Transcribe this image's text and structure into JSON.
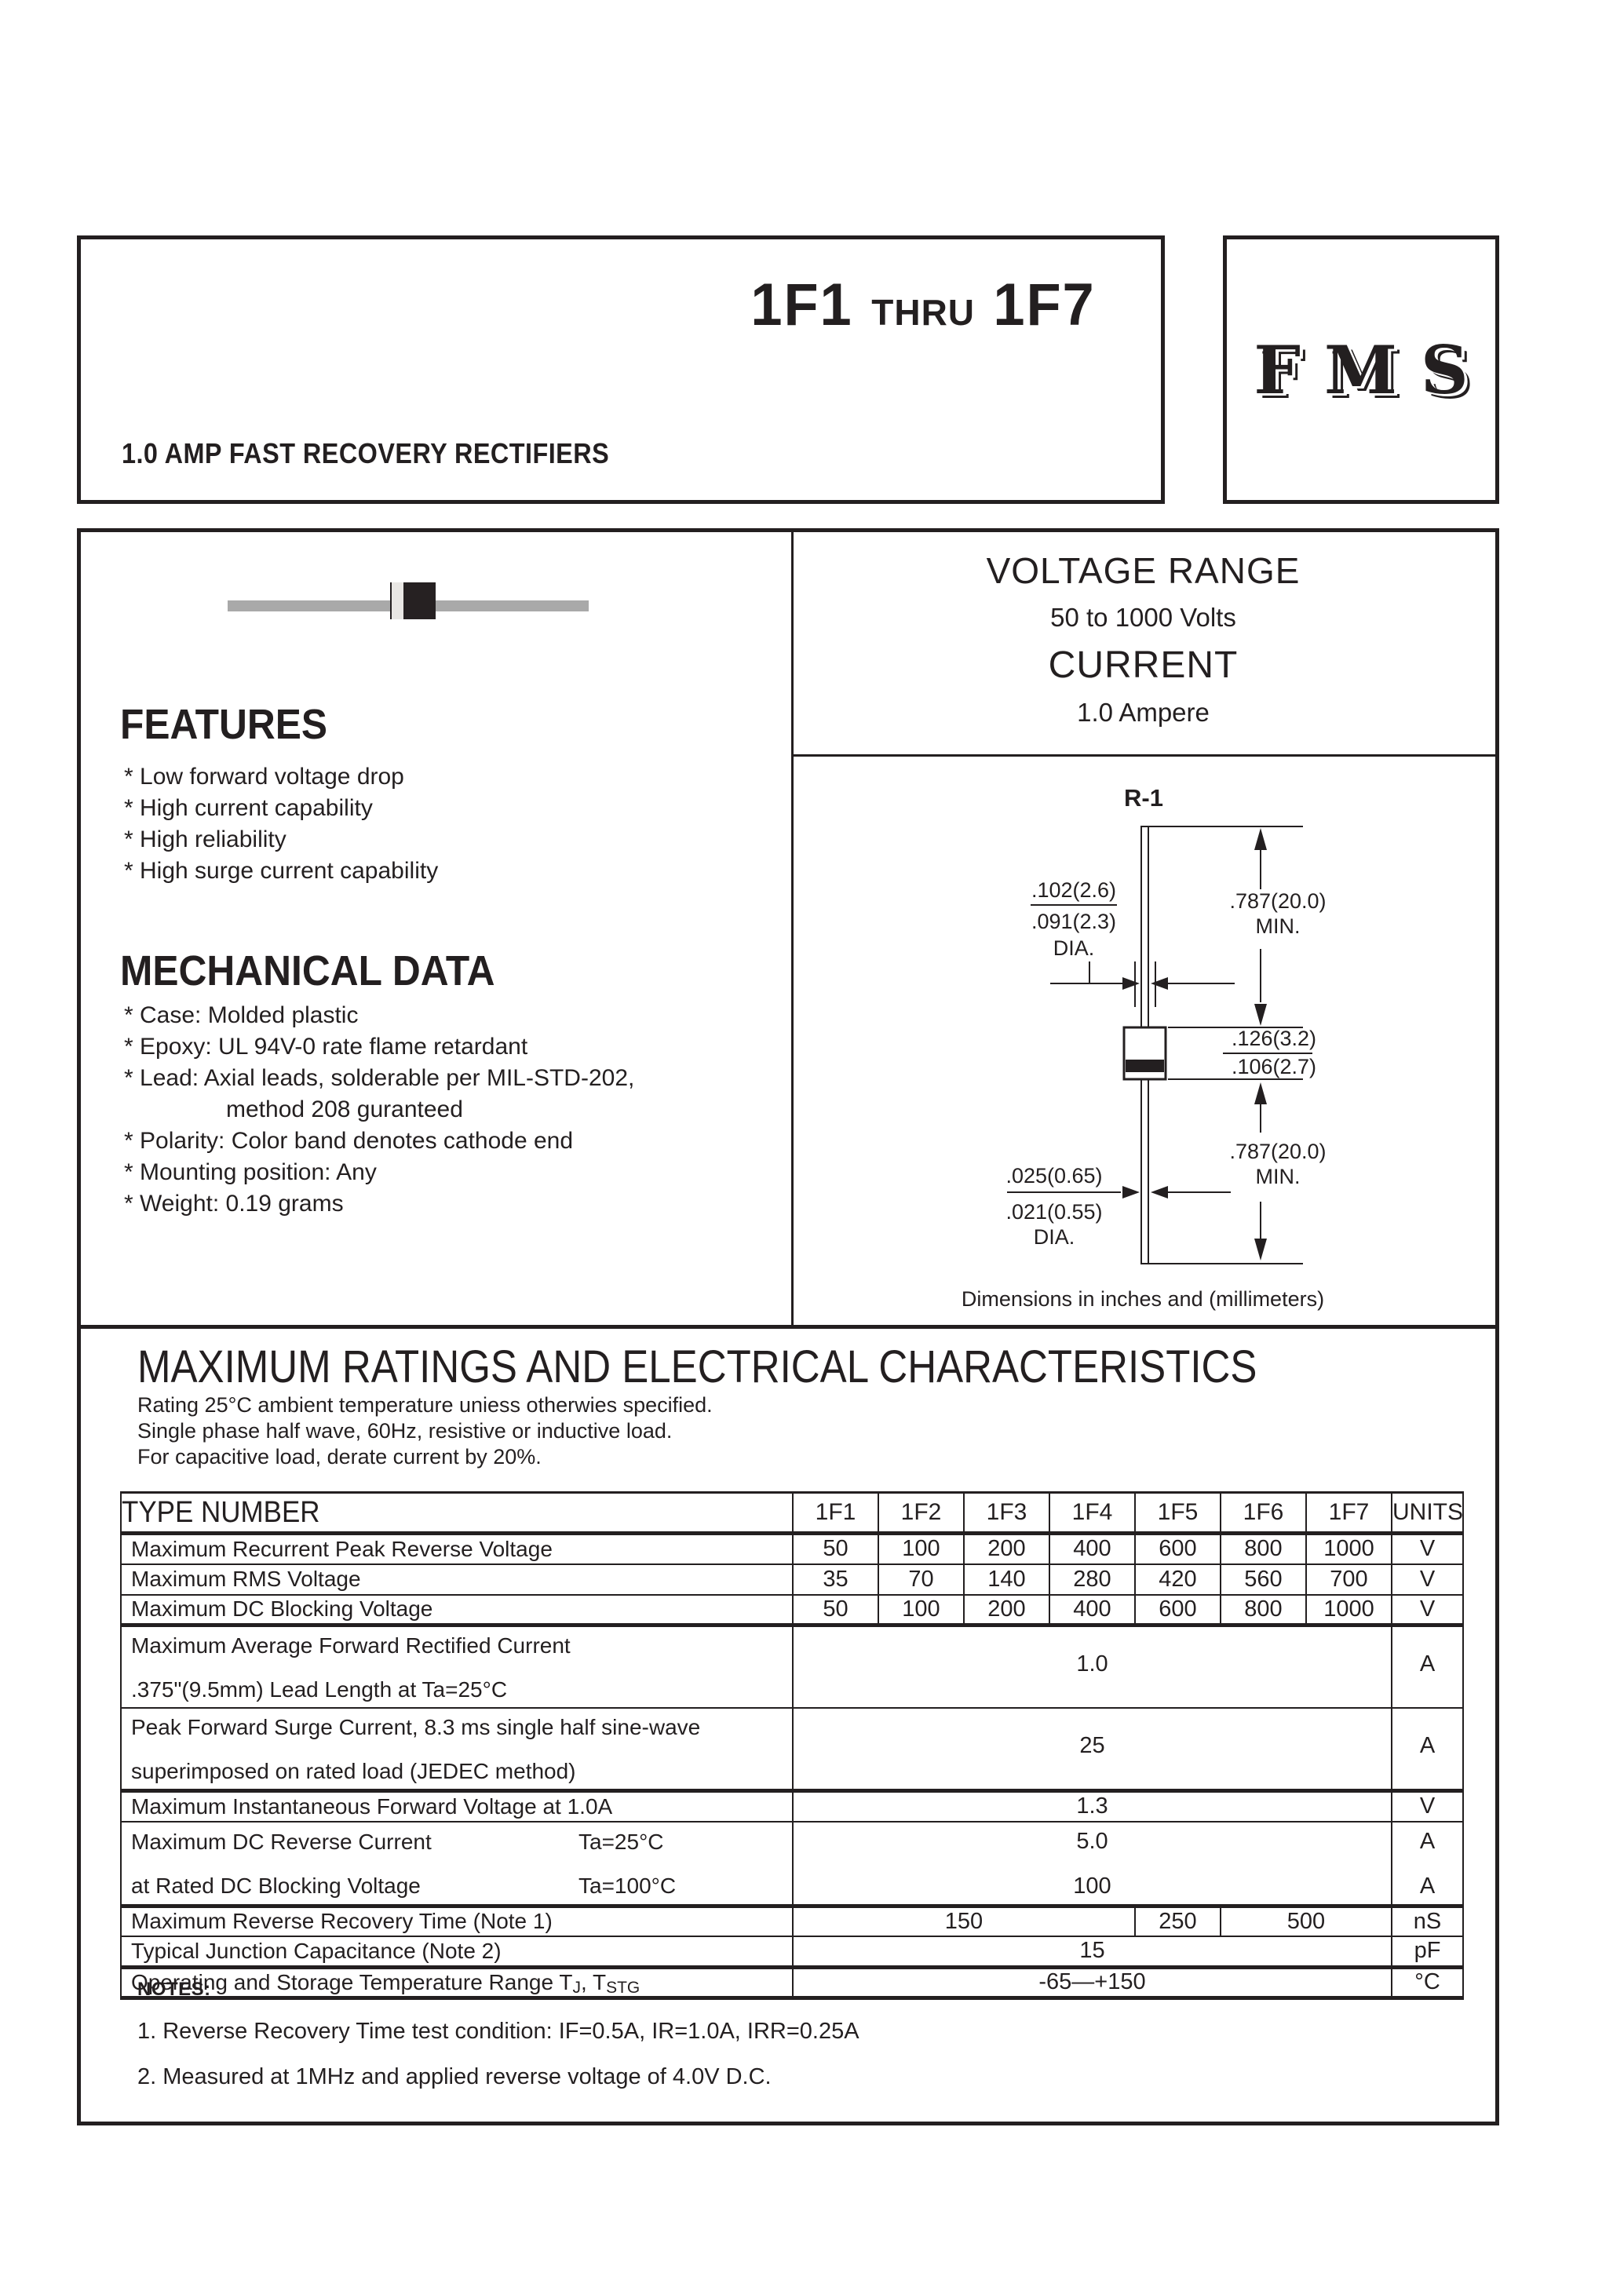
{
  "header": {
    "title_first": "1F1",
    "title_thru": "THRU",
    "title_last": "1F7",
    "subtitle": "1.0 AMP FAST RECOVERY RECTIFIERS",
    "brand": "FMS"
  },
  "summary": {
    "voltage_range_label": "VOLTAGE RANGE",
    "voltage_range_value": "50 to 1000 Volts",
    "current_label": "CURRENT",
    "current_value": "1.0 Ampere"
  },
  "features": {
    "heading": "FEATURES",
    "items": [
      "* Low forward voltage drop",
      "* High current capability",
      "* High reliability",
      "* High surge current capability"
    ]
  },
  "mechanical": {
    "heading": "MECHANICAL DATA",
    "items": [
      {
        "text": "* Case: Molded plastic",
        "indent": false
      },
      {
        "text": "* Epoxy: UL 94V-0 rate flame retardant",
        "indent": false
      },
      {
        "text": "* Lead: Axial leads, solderable per MIL-STD-202,",
        "indent": false
      },
      {
        "text": "method 208 guranteed",
        "indent": true
      },
      {
        "text": "* Polarity: Color band denotes cathode end",
        "indent": false
      },
      {
        "text": "* Mounting position: Any",
        "indent": false
      },
      {
        "text": "* Weight: 0.19 grams",
        "indent": false
      }
    ]
  },
  "package_drawing": {
    "name": "R-1",
    "caption": "Dimensions in inches and (millimeters)",
    "body_dia_max": ".102(2.6)",
    "body_dia_min": ".091(2.3)",
    "body_dia_label": "DIA.",
    "lead_len_top": ".787(20.0)",
    "lead_len_top_min": "MIN.",
    "body_len_max": ".126(3.2)",
    "body_len_min": ".106(2.7)",
    "lead_len_bottom": ".787(20.0)",
    "lead_len_bottom_min": "MIN.",
    "lead_dia_max": ".025(0.65)",
    "lead_dia_min": ".021(0.55)",
    "lead_dia_label": "DIA."
  },
  "ratings": {
    "heading": "MAXIMUM RATINGS AND ELECTRICAL CHARACTERISTICS",
    "conditions": [
      "Rating 25°C ambient temperature uniess otherwies specified.",
      "Single phase half wave, 60Hz, resistive or inductive load.",
      "For capacitive load, derate current by 20%."
    ],
    "table": {
      "type_header": "TYPE NUMBER",
      "columns": [
        "1F1",
        "1F2",
        "1F3",
        "1F4",
        "1F5",
        "1F6",
        "1F7"
      ],
      "units_header": "UNITS",
      "rows": [
        {
          "kind": "simple",
          "label": "Maximum Recurrent Peak Reverse Voltage",
          "values": [
            "50",
            "100",
            "200",
            "400",
            "600",
            "800",
            "1000"
          ],
          "unit": "V"
        },
        {
          "kind": "simple",
          "label": "Maximum RMS Voltage",
          "values": [
            "35",
            "70",
            "140",
            "280",
            "420",
            "560",
            "700"
          ],
          "unit": "V"
        },
        {
          "kind": "simple",
          "label": "Maximum DC Blocking Voltage",
          "values": [
            "50",
            "100",
            "200",
            "400",
            "600",
            "800",
            "1000"
          ],
          "unit": "V",
          "thick": true
        },
        {
          "kind": "tall",
          "label_lines": [
            "Maximum Average Forward Rectified Current",
            ".375\"(9.5mm) Lead Length at Ta=25°C"
          ],
          "value": "1.0",
          "unit": "A"
        },
        {
          "kind": "tall",
          "label_lines": [
            "Peak Forward Surge Current, 8.3 ms single half sine-wave",
            "superimposed on rated load (JEDEC method)"
          ],
          "value": "25",
          "unit": "A",
          "thick": true
        },
        {
          "kind": "span",
          "label": "Maximum Instantaneous Forward Voltage at 1.0A",
          "value": "1.3",
          "unit": "V"
        },
        {
          "kind": "double",
          "lines": [
            {
              "label": "Maximum DC Reverse Current",
              "condition": "Ta=25°C",
              "value": "5.0",
              "unit": "A"
            },
            {
              "label": "at Rated DC Blocking Voltage",
              "condition": "Ta=100°C",
              "value": "100",
              "unit": "A"
            }
          ],
          "thick": true
        },
        {
          "kind": "segments",
          "label": "Maximum Reverse Recovery Time (Note 1)",
          "segments": [
            {
              "value": "150",
              "span": 4
            },
            {
              "value": "250",
              "span": 1
            },
            {
              "value": "500",
              "span": 2
            }
          ],
          "unit": "nS"
        },
        {
          "kind": "span",
          "label": "Typical Junction Capacitance (Note 2)",
          "value": "15",
          "unit": "pF",
          "thick": true
        },
        {
          "kind": "span",
          "label_parts": [
            {
              "t": "Operating and Storage Temperature Range T"
            },
            {
              "t": "J",
              "sub": true
            },
            {
              "t": ", T"
            },
            {
              "t": "STG",
              "sub": true
            }
          ],
          "value": "-65—+150",
          "unit": "°C",
          "thick": true
        }
      ]
    },
    "notes_heading": "NOTES:",
    "notes": [
      "1. Reverse Recovery Time test condition: IF=0.5A, IR=1.0A, IRR=0.25A",
      "2. Measured at 1MHz and applied reverse voltage of 4.0V D.C."
    ]
  }
}
